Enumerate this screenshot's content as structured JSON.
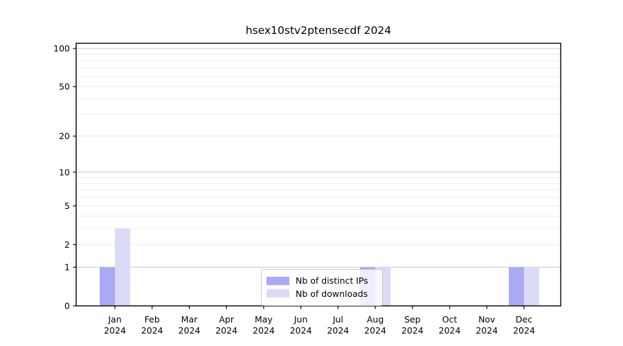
{
  "title": "hsex10stv2ptensecdf 2024",
  "chart_data": {
    "type": "bar",
    "title": "hsex10stv2ptensecdf 2024",
    "categories": [
      "Jan",
      "Feb",
      "Mar",
      "Apr",
      "May",
      "Jun",
      "Jul",
      "Aug",
      "Sep",
      "Oct",
      "Nov",
      "Dec"
    ],
    "category_year": "2024",
    "series": [
      {
        "name": "Nb of distinct IPs",
        "color": "#a9a9f4",
        "values": [
          1,
          0,
          0,
          0,
          0,
          0,
          0,
          1,
          0,
          0,
          0,
          1
        ]
      },
      {
        "name": "Nb of downloads",
        "color": "#dbdbf8",
        "values": [
          3,
          0,
          0,
          0,
          0,
          0,
          0,
          1,
          0,
          0,
          0,
          1
        ]
      }
    ],
    "xlabel": "",
    "ylabel": "",
    "y_scale": "log1p",
    "ylim": [
      0,
      100
    ],
    "y_tick_labels": [
      "0",
      "1",
      "2",
      "5",
      "10",
      "20",
      "50",
      "100"
    ],
    "y_tick_values": [
      0,
      1,
      2,
      5,
      10,
      20,
      50,
      100
    ],
    "y_major_grid_values": [
      1,
      10,
      100
    ],
    "y_minor_grid_values": [
      2,
      3,
      4,
      5,
      6,
      7,
      8,
      9,
      20,
      30,
      40,
      50,
      60,
      70,
      80,
      90
    ],
    "grid": "both",
    "legend_position": "lower center"
  },
  "colors": {
    "background": "#ffffff",
    "axis": "#000000",
    "major_grid": "#c6c6c6",
    "minor_grid": "#ededed",
    "tick_label": "#000000",
    "legend_border": "#cccccc"
  }
}
